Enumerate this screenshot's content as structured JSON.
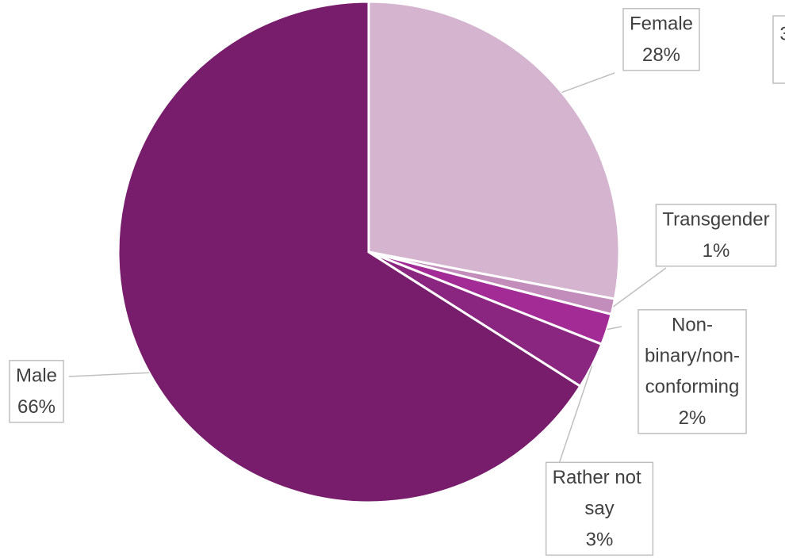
{
  "chart_data": {
    "type": "pie",
    "categories": [
      "Female",
      "Transgender",
      "Non-binary/non-conforming",
      "Rather not say",
      "Male"
    ],
    "values": [
      28,
      1,
      2,
      3,
      66
    ],
    "value_labels": [
      "28%",
      "1%",
      "2%",
      "3%",
      "66%"
    ],
    "colors": [
      "#d4b4cf",
      "#c28cbb",
      "#a22b96",
      "#8a2580",
      "#781c6c"
    ],
    "annotation": "3"
  }
}
